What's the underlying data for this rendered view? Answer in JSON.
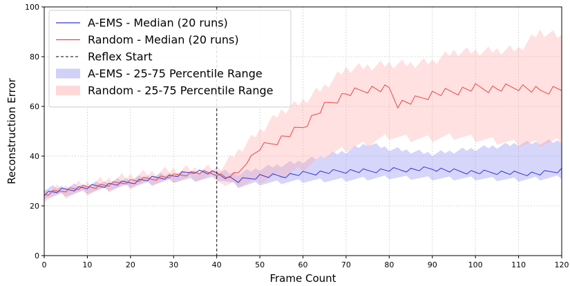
{
  "chart_data": {
    "type": "line",
    "xlabel": "Frame Count",
    "ylabel": "Reconstruction Error",
    "xlim": [
      0,
      120
    ],
    "ylim": [
      0,
      100
    ],
    "xticks": [
      0,
      10,
      20,
      30,
      40,
      50,
      60,
      70,
      80,
      90,
      100,
      110,
      120
    ],
    "yticks": [
      0,
      20,
      40,
      60,
      80,
      100
    ],
    "grid": true,
    "legend_position": "top-left",
    "reflex_start": {
      "name": "Reflex Start",
      "x": 40,
      "color": "#333333"
    },
    "series": [
      {
        "name": "A-EMS - Median (20 runs)",
        "color": "#3333dd",
        "x": [
          0,
          5,
          10,
          15,
          20,
          25,
          30,
          35,
          40,
          45,
          50,
          55,
          60,
          65,
          70,
          75,
          80,
          85,
          90,
          95,
          100,
          105,
          110,
          115,
          120
        ],
        "values": [
          25,
          26.5,
          27.5,
          28.5,
          29.5,
          31,
          32,
          34,
          33,
          30,
          32,
          32,
          33,
          33.5,
          34,
          34,
          34.5,
          34.5,
          35,
          34,
          33.5,
          33.5,
          33,
          33,
          34.5
        ]
      },
      {
        "name": "Random - Median (20 runs)",
        "color": "#ee4444",
        "x": [
          0,
          5,
          10,
          15,
          20,
          25,
          30,
          35,
          40,
          42,
          45,
          47,
          50,
          55,
          60,
          65,
          70,
          75,
          80,
          82,
          85,
          90,
          95,
          100,
          105,
          110,
          115,
          120
        ],
        "values": [
          24.5,
          26.5,
          27.5,
          28.5,
          30,
          31,
          32,
          33.5,
          33,
          31.5,
          33,
          38,
          43,
          47,
          52,
          60,
          65,
          67,
          67,
          61,
          62,
          65,
          66,
          67.5,
          67,
          68,
          66,
          67.5
        ]
      }
    ],
    "bands": [
      {
        "name": "A-EMS - 25-75 Percentile Range",
        "color": "#7777ee",
        "x": [
          0,
          10,
          20,
          30,
          40,
          45,
          50,
          60,
          70,
          75,
          80,
          90,
          100,
          110,
          120
        ],
        "upper": [
          27,
          28.5,
          31,
          33,
          34,
          33,
          35,
          38,
          42,
          45,
          43,
          41,
          43,
          45,
          46
        ],
        "lower": [
          23.5,
          25.5,
          28,
          30,
          31,
          28,
          29,
          30,
          30.5,
          31,
          31.5,
          31,
          31,
          30.5,
          31.5
        ]
      },
      {
        "name": "Random - 25-75 Percentile Range",
        "color": "#ffaaaa",
        "x": [
          0,
          10,
          20,
          30,
          40,
          42,
          45,
          50,
          55,
          60,
          65,
          70,
          75,
          80,
          85,
          90,
          95,
          100,
          110,
          115,
          120
        ],
        "upper": [
          26,
          29,
          32,
          34.5,
          35,
          37,
          42,
          50,
          58,
          62,
          68,
          75,
          76,
          77,
          77,
          78,
          82,
          82,
          83,
          90,
          88
        ],
        "lower": [
          23,
          25.5,
          28,
          30.5,
          31.5,
          28,
          28.5,
          30,
          32,
          35,
          40,
          43,
          45,
          48,
          47,
          47,
          48,
          47,
          45,
          45,
          46
        ]
      }
    ]
  }
}
